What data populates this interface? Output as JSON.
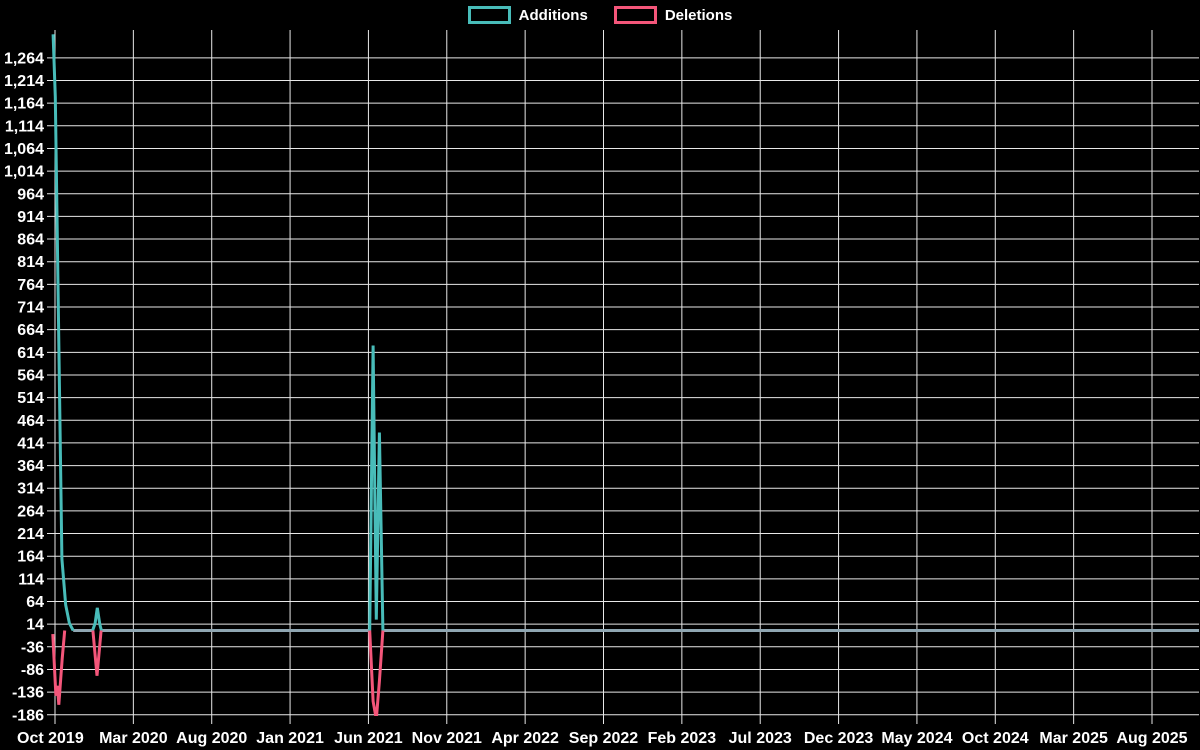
{
  "legend": {
    "items": [
      {
        "label": "Additions",
        "color": "#48bcb9"
      },
      {
        "label": "Deletions",
        "color": "#f4567a"
      }
    ]
  },
  "chart_data": {
    "type": "line",
    "title": "",
    "description": "Weekly additions and deletions line chart (code-frequency style) on black background with white grid",
    "legend_position": "top-center",
    "grid": true,
    "x_axis": {
      "tick_labels": [
        "Oct 2019",
        "Mar 2020",
        "Aug 2020",
        "Jan 2021",
        "Jun 2021",
        "Nov 2021",
        "Apr 2022",
        "Sep 2022",
        "Feb 2023",
        "Jul 2023",
        "Dec 2023",
        "May 2024",
        "Oct 2024",
        "Mar 2025",
        "Aug 2025"
      ],
      "months_between_ticks": 5
    },
    "y_axis": {
      "tick_values": [
        1264,
        1214,
        1164,
        1114,
        1064,
        1014,
        964,
        914,
        864,
        814,
        764,
        714,
        664,
        614,
        564,
        514,
        464,
        414,
        364,
        314,
        264,
        214,
        164,
        114,
        64,
        14,
        -36,
        -86,
        -136,
        -186
      ],
      "tick_labels": [
        "1,264",
        "1,214",
        "1,164",
        "1,114",
        "1,064",
        "1,014",
        "964",
        "914",
        "864",
        "814",
        "764",
        "714",
        "664",
        "614",
        "564",
        "514",
        "464",
        "414",
        "364",
        "314",
        "264",
        "214",
        "164",
        "114",
        "64",
        "14",
        "-36",
        "-86",
        "-136",
        "-186"
      ],
      "visible_range": [
        -189,
        1325
      ]
    },
    "colors": {
      "additions": "#48bcb9",
      "deletions": "#f4567a",
      "zero_line": "#8fa6b2",
      "grid": "#e8e8e8",
      "text": "#ffffff",
      "background": "#000000"
    },
    "series": [
      {
        "name": "Additions",
        "color": "#48bcb9",
        "x_unit": "months_after_Oct_2019",
        "segments": [
          [
            [
              -0.12,
              1316
            ],
            [
              0.02,
              1178
            ],
            [
              0.44,
              158
            ],
            [
              0.68,
              56
            ],
            [
              0.92,
              16
            ],
            [
              1.16,
              0
            ]
          ],
          [
            [
              2.4,
              0
            ],
            [
              2.56,
              16
            ],
            [
              2.7,
              50
            ],
            [
              2.86,
              14
            ],
            [
              2.96,
              0
            ]
          ],
          [
            [
              20.08,
              0
            ],
            [
              20.3,
              629
            ],
            [
              20.5,
              24
            ],
            [
              20.7,
              437
            ],
            [
              20.92,
              0
            ]
          ]
        ]
      },
      {
        "name": "Deletions",
        "color": "#f4567a",
        "x_unit": "months_after_Oct_2019",
        "segments": [
          [
            [
              -0.14,
              -8
            ],
            [
              0.06,
              -144
            ],
            [
              0.16,
              -122
            ],
            [
              0.24,
              -164
            ],
            [
              0.46,
              -62
            ],
            [
              0.62,
              0
            ]
          ],
          [
            [
              2.42,
              0
            ],
            [
              2.68,
              -100
            ],
            [
              2.94,
              0
            ]
          ],
          [
            [
              20.08,
              0
            ],
            [
              20.3,
              -156
            ],
            [
              20.5,
              -196
            ],
            [
              20.7,
              -112
            ],
            [
              20.92,
              0
            ]
          ]
        ]
      }
    ],
    "zero_runs": [
      [
        1.16,
        2.4
      ],
      [
        2.96,
        20.08
      ],
      [
        20.92,
        73.0
      ]
    ]
  }
}
